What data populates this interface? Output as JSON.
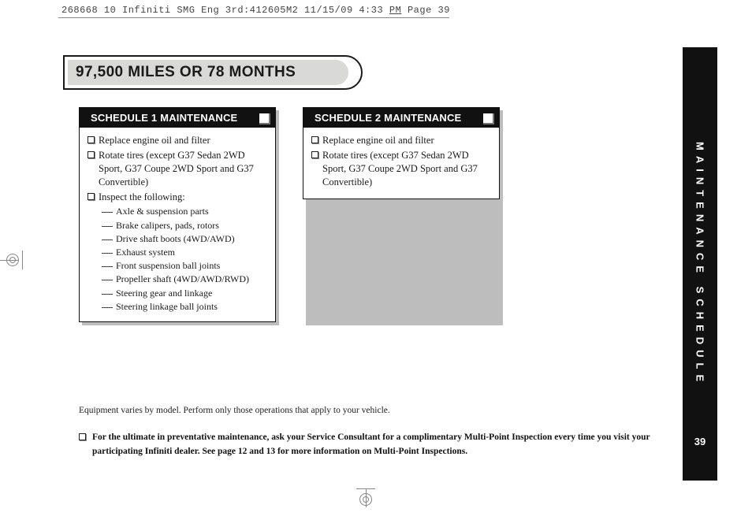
{
  "proof": {
    "line": "268668 10 Infiniti SMG Eng 3rd:412605M2  11/15/09  4:33 ",
    "pm": "PM",
    "page": "  Page 39"
  },
  "title": "97,500 MILES OR 78 MONTHS",
  "sched1": {
    "head": "SCHEDULE 1 MAINTENANCE",
    "items": [
      "Replace engine oil and filter",
      "Rotate tires (except G37 Sedan 2WD Sport, G37 Coupe 2WD Sport and G37 Convertible)",
      "Inspect the following:"
    ],
    "subs": [
      "Axle & suspension parts",
      "Brake calipers, pads, rotors",
      "Drive shaft boots (4WD/AWD)",
      "Exhaust system",
      "Front suspension ball joints",
      "Propeller shaft (4WD/AWD/RWD)",
      "Steering gear and linkage",
      "Steering linkage ball joints"
    ]
  },
  "sched2": {
    "head": "SCHEDULE 2 MAINTENANCE",
    "items": [
      "Replace engine oil and filter",
      "Rotate tires (except G37 Sedan 2WD Sport, G37 Coupe 2WD Sport and G37 Convertible)"
    ]
  },
  "side": {
    "label": "MAINTENANCE SCHEDULE",
    "page": "39"
  },
  "footer": {
    "note1": "Equipment varies by model. Perform only those operations that apply to your vehicle.",
    "note2": "For the ultimate in preventative maintenance, ask your Service Consultant for a complimentary Multi-Point Inspection every time you visit your participating Infiniti dealer. See page 12 and 13 for more information on Multi-Point Inspections."
  }
}
